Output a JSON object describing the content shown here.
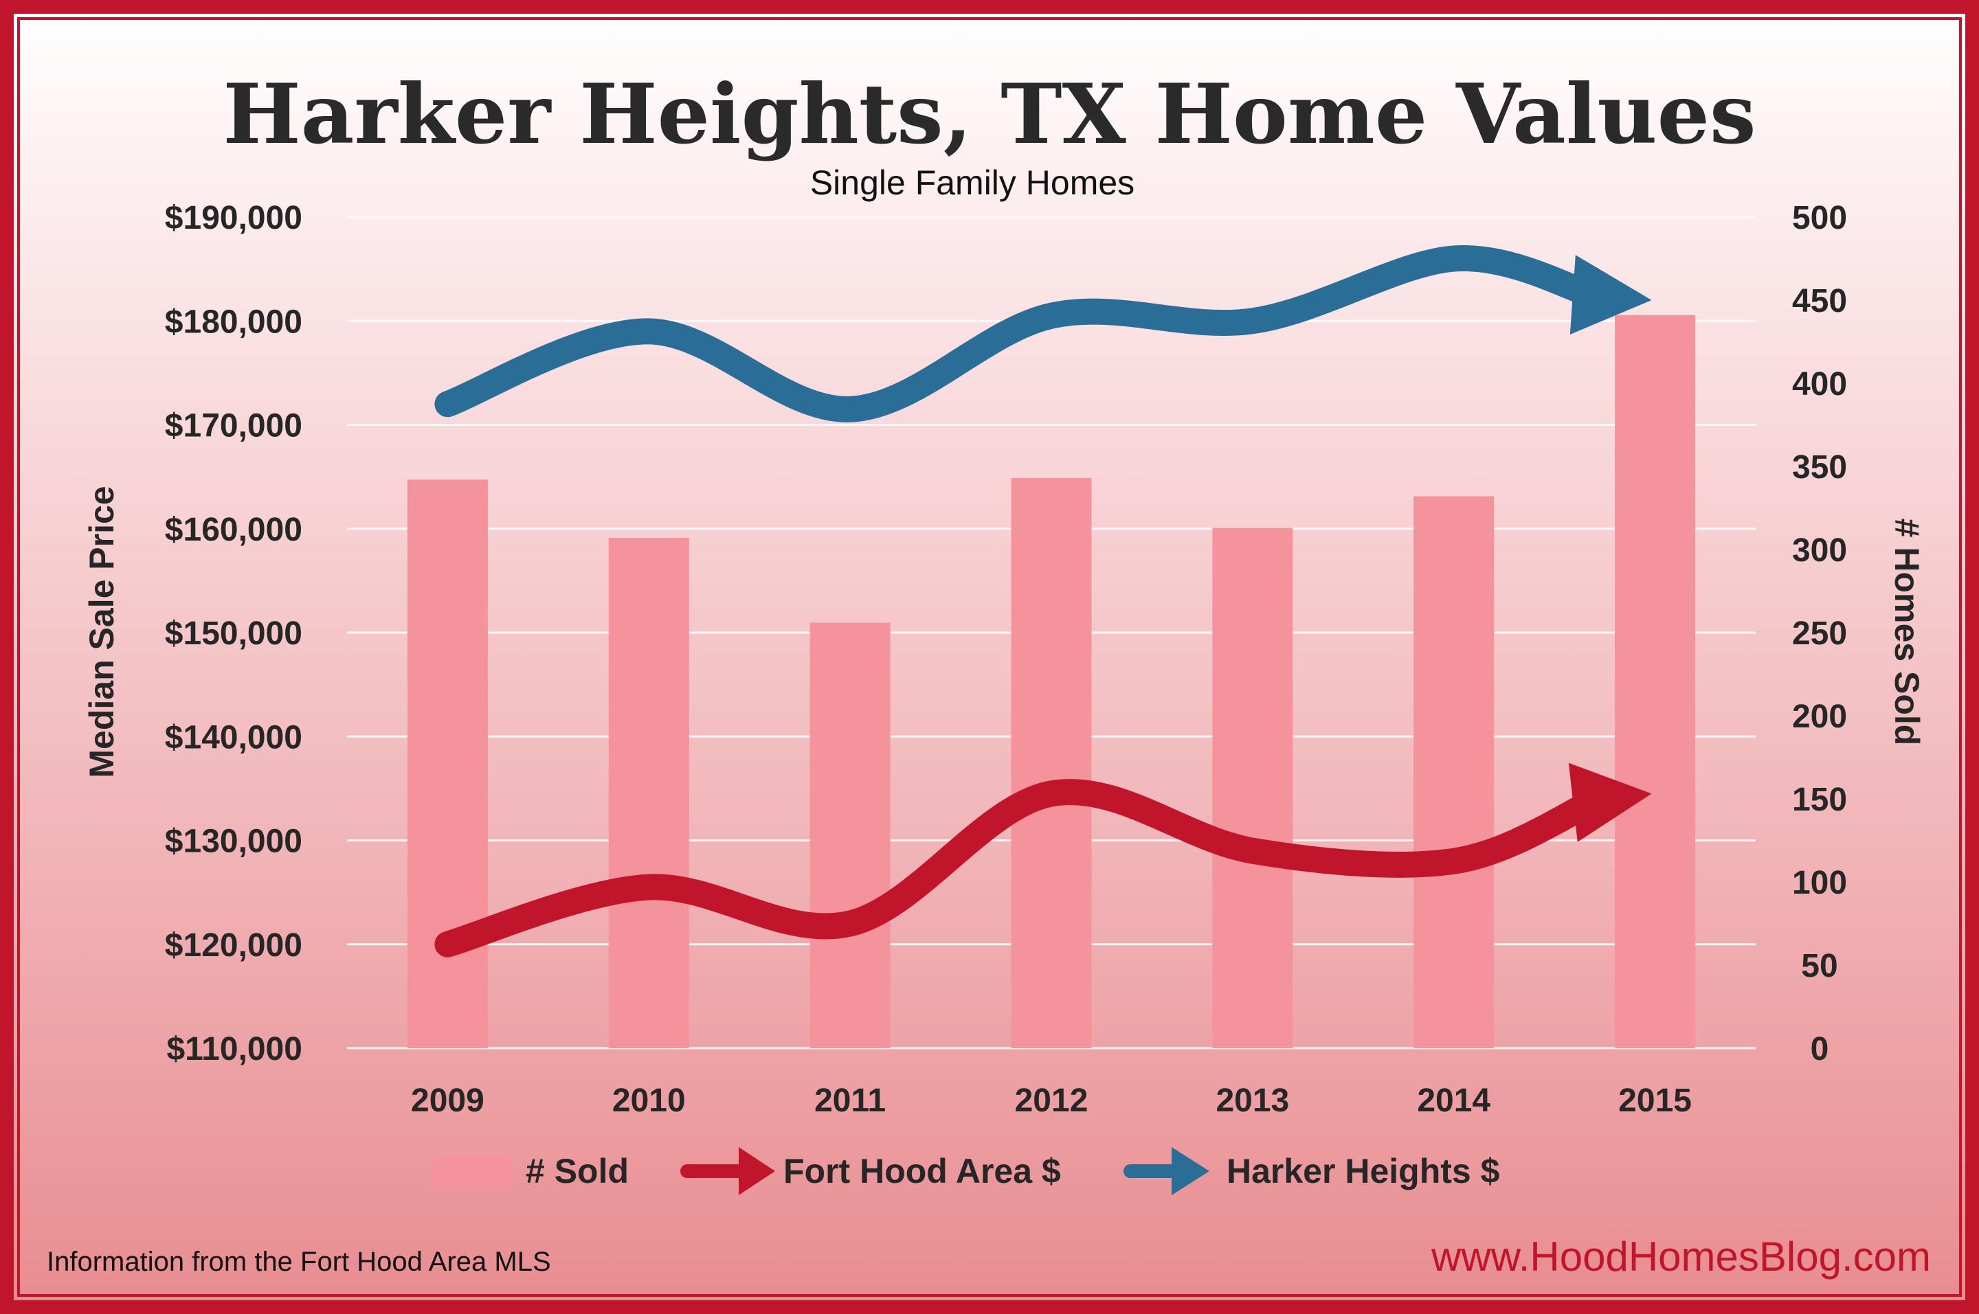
{
  "title": "Harker Heights, TX Home Values",
  "subtitle": "Single Family Homes",
  "source_note": "Information from the Fort Hood Area MLS",
  "website": "www.HoodHomesBlog.com",
  "colors": {
    "frame": "#c0152a",
    "bars": "#f4939c",
    "fort_hood": "#c0152a",
    "harker_heights": "#2a6d96",
    "bg_top": "#ffffff",
    "bg_bottom": "#e88c90"
  },
  "chart_data": {
    "type": "bar",
    "categories": [
      "2009",
      "2010",
      "2011",
      "2012",
      "2013",
      "2014",
      "2015"
    ],
    "ylabel": "Median Sale Price",
    "y2label": "# Homes Sold",
    "ylim": [
      110000,
      190000
    ],
    "y2lim": [
      0,
      500
    ],
    "yticks": [
      "$190,000",
      "$180,000",
      "$170,000",
      "$160,000",
      "$150,000",
      "$140,000",
      "$130,000",
      "$120,000",
      "$110,000"
    ],
    "y2ticks": [
      "500",
      "450",
      "400",
      "350",
      "300",
      "250",
      "200",
      "150",
      "100",
      "50",
      "0"
    ],
    "grid": true,
    "legend_position": "bottom",
    "series": [
      {
        "name": "# Sold",
        "type": "bar",
        "axis": "right",
        "values": [
          342,
          307,
          256,
          343,
          313,
          332,
          441
        ]
      },
      {
        "name": "Fort Hood Area $",
        "type": "line",
        "axis": "left",
        "values": [
          120000,
          125500,
          122000,
          134500,
          129000,
          128000,
          134500
        ]
      },
      {
        "name": "Harker Heights $",
        "type": "line",
        "axis": "left",
        "values": [
          172000,
          179000,
          171500,
          180500,
          180000,
          186000,
          182000
        ]
      }
    ]
  }
}
